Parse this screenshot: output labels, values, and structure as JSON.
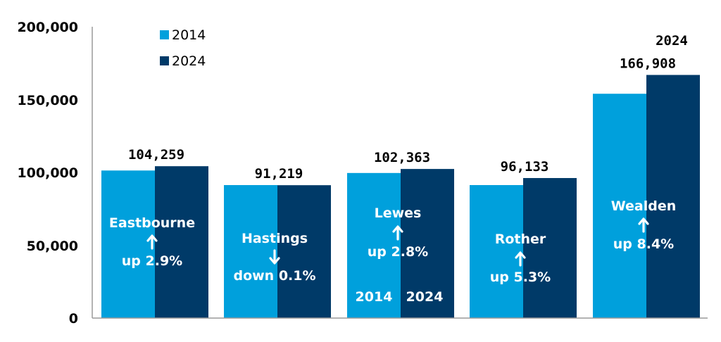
{
  "colors": {
    "y2014": "#00A0DC",
    "y2024": "#003A68",
    "axis": "#9a9a9a"
  },
  "chart_data": {
    "type": "bar",
    "categories": [
      "Eastbourne",
      "Hastings",
      "Lewes",
      "Rother",
      "Wealden"
    ],
    "series": [
      {
        "name": "2014",
        "values": [
          101300,
          91300,
          99600,
          91300,
          154000
        ]
      },
      {
        "name": "2024",
        "values": [
          104259,
          91219,
          102363,
          96133,
          166908
        ]
      }
    ],
    "value_labels": [
      "104,259",
      "91,219",
      "102,363",
      "96,133",
      "166,908"
    ],
    "changes": [
      {
        "direction": "up",
        "text": "up 2.9%"
      },
      {
        "direction": "down",
        "text": "down 0.1%"
      },
      {
        "direction": "up",
        "text": "up 2.8%"
      },
      {
        "direction": "up",
        "text": "up 5.3%"
      },
      {
        "direction": "up",
        "text": "up 8.4%"
      }
    ],
    "annotations": {
      "lewes_year_2014": "2014",
      "lewes_year_2024": "2024",
      "wealden_year": "2024"
    },
    "y_ticks": [
      "0",
      "50,000",
      "100,000",
      "150,000",
      "200,000"
    ],
    "ylim": [
      0,
      200000
    ],
    "legend": {
      "placement": "top-left",
      "entries": [
        "2014",
        "2024"
      ]
    },
    "grid": false,
    "title": "",
    "xlabel": "",
    "ylabel": ""
  }
}
